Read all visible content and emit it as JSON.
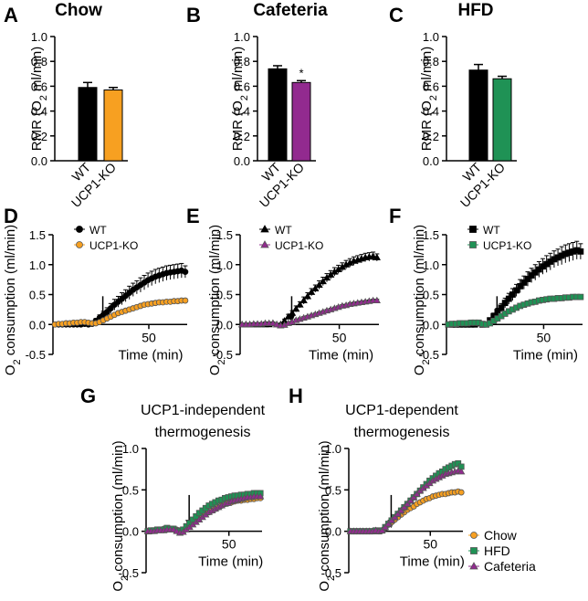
{
  "chart_data": [
    {
      "panel": "A",
      "type": "bar",
      "title": "Chow",
      "ylabel": "RMR (O2 ml/min)",
      "ylabel_main": "RMR (O",
      "ylabel_sub": "2",
      "ylabel_end": " ml/min)",
      "ylim": [
        0,
        1.0
      ],
      "yticks": [
        "0.0",
        "0.2",
        "0.4",
        "0.6",
        "0.8",
        "1.0"
      ],
      "categories": [
        "WT",
        "UCP1-KO"
      ],
      "values": [
        0.59,
        0.57
      ],
      "errors": [
        0.04,
        0.02
      ],
      "colors": [
        "#000000",
        "#f7a021"
      ],
      "significance": [
        "",
        ""
      ]
    },
    {
      "panel": "B",
      "type": "bar",
      "title": "Cafeteria",
      "ylabel": "RMR (O2 ml/min)",
      "ylabel_main": "RMR (O",
      "ylabel_sub": "2",
      "ylabel_end": " ml/min)",
      "ylim": [
        0,
        1.0
      ],
      "yticks": [
        "0.0",
        "0.2",
        "0.4",
        "0.6",
        "0.8",
        "1.0"
      ],
      "categories": [
        "WT",
        "UCP1-KO"
      ],
      "values": [
        0.74,
        0.63
      ],
      "errors": [
        0.025,
        0.015
      ],
      "colors": [
        "#000000",
        "#922a8f"
      ],
      "significance": [
        "",
        "*"
      ]
    },
    {
      "panel": "C",
      "type": "bar",
      "title": "HFD",
      "ylabel": "RMR (O2 ml/min)",
      "ylabel_main": "RMR (O",
      "ylabel_sub": "2",
      "ylabel_end": " ml/min)",
      "ylim": [
        0,
        1.0
      ],
      "yticks": [
        "0.0",
        "0.2",
        "0.4",
        "0.6",
        "0.8",
        "1.0"
      ],
      "categories": [
        "WT",
        "UCP1-KO"
      ],
      "values": [
        0.73,
        0.66
      ],
      "errors": [
        0.045,
        0.02
      ],
      "colors": [
        "#000000",
        "#1f9255"
      ],
      "significance": [
        "",
        ""
      ]
    },
    {
      "panel": "D",
      "type": "line",
      "ylabel": "O2 consumption (ml/min)",
      "ylabel_pre": "O",
      "ylabel_sub": "2",
      "ylabel_end": " consumption (ml/min)",
      "xlabel": "Time (min)",
      "xlim": [
        0,
        70
      ],
      "xticks": [
        50
      ],
      "xtick_labels": [
        "50"
      ],
      "ylim": [
        -0.5,
        1.5
      ],
      "yticks": [
        "-0.5",
        "0.0",
        "0.5",
        "1.0",
        "1.5"
      ],
      "arrow_x": 30,
      "series": [
        {
          "name": "WT",
          "marker": "circle",
          "color": "#000000",
          "values": [
            0.0,
            0.0,
            0.0,
            0.0,
            0.0,
            0.0,
            0.0,
            0.0,
            0.01,
            0.0,
            0.01,
            0.06,
            0.11,
            0.16,
            0.21,
            0.27,
            0.33,
            0.38,
            0.43,
            0.48,
            0.53,
            0.58,
            0.62,
            0.66,
            0.7,
            0.74,
            0.77,
            0.8,
            0.82,
            0.84,
            0.86,
            0.87,
            0.88,
            0.89,
            0.9,
            0.88
          ],
          "errors": [
            0.02,
            0.02,
            0.02,
            0.02,
            0.02,
            0.02,
            0.02,
            0.02,
            0.02,
            0.02,
            0.02,
            0.04,
            0.05,
            0.06,
            0.07,
            0.08,
            0.09,
            0.09,
            0.1,
            0.1,
            0.11,
            0.11,
            0.11,
            0.12,
            0.12,
            0.12,
            0.12,
            0.12,
            0.12,
            0.12,
            0.12,
            0.12,
            0.12,
            0.12,
            0.12,
            0.1
          ]
        },
        {
          "name": "UCP1-KO",
          "marker": "circle",
          "color": "#f7a021",
          "values": [
            0.0,
            0.01,
            0.01,
            0.02,
            0.02,
            0.03,
            0.03,
            0.04,
            0.04,
            0.03,
            0.02,
            0.02,
            0.04,
            0.07,
            0.1,
            0.13,
            0.16,
            0.19,
            0.21,
            0.23,
            0.25,
            0.27,
            0.29,
            0.31,
            0.33,
            0.34,
            0.35,
            0.36,
            0.37,
            0.37,
            0.38,
            0.38,
            0.39,
            0.39,
            0.4,
            0.4
          ],
          "errors": [
            0.02,
            0.02,
            0.02,
            0.02,
            0.02,
            0.02,
            0.02,
            0.02,
            0.02,
            0.02,
            0.02,
            0.02,
            0.02,
            0.03,
            0.03,
            0.03,
            0.03,
            0.03,
            0.03,
            0.03,
            0.03,
            0.03,
            0.03,
            0.03,
            0.03,
            0.03,
            0.03,
            0.03,
            0.03,
            0.03,
            0.03,
            0.03,
            0.03,
            0.03,
            0.03,
            0.03
          ]
        }
      ]
    },
    {
      "panel": "E",
      "type": "line",
      "ylabel": "O2 consumption (ml/min)",
      "ylabel_pre": "O",
      "ylabel_sub": "2",
      "ylabel_end": " consumption (ml/min)",
      "xlabel": "Time (min)",
      "xlim": [
        0,
        70
      ],
      "xticks": [
        50
      ],
      "xtick_labels": [
        "50"
      ],
      "ylim": [
        -0.5,
        1.5
      ],
      "yticks": [
        "-0.5",
        "0.0",
        "0.5",
        "1.0",
        "1.5"
      ],
      "arrow_x": 30,
      "series": [
        {
          "name": "WT",
          "marker": "triangle",
          "color": "#000000",
          "values": [
            0.0,
            0.0,
            0.0,
            0.0,
            0.0,
            0.0,
            0.0,
            0.0,
            0.02,
            0.0,
            0.0,
            0.06,
            0.13,
            0.19,
            0.26,
            0.33,
            0.4,
            0.47,
            0.54,
            0.6,
            0.66,
            0.72,
            0.78,
            0.83,
            0.88,
            0.92,
            0.96,
            1.0,
            1.03,
            1.06,
            1.08,
            1.1,
            1.12,
            1.13,
            1.14,
            1.12
          ],
          "errors": [
            0.02,
            0.02,
            0.02,
            0.02,
            0.02,
            0.02,
            0.02,
            0.02,
            0.02,
            0.02,
            0.02,
            0.03,
            0.04,
            0.04,
            0.05,
            0.05,
            0.06,
            0.06,
            0.06,
            0.06,
            0.07,
            0.07,
            0.07,
            0.07,
            0.07,
            0.07,
            0.07,
            0.07,
            0.07,
            0.07,
            0.07,
            0.07,
            0.07,
            0.07,
            0.07,
            0.06
          ]
        },
        {
          "name": "UCP1-KO",
          "marker": "triangle",
          "color": "#922a8f",
          "values": [
            0.0,
            0.0,
            0.0,
            0.01,
            0.01,
            0.01,
            0.02,
            0.02,
            0.02,
            0.0,
            -0.02,
            -0.01,
            0.02,
            0.04,
            0.07,
            0.09,
            0.11,
            0.13,
            0.15,
            0.17,
            0.19,
            0.21,
            0.23,
            0.25,
            0.27,
            0.29,
            0.31,
            0.32,
            0.34,
            0.35,
            0.36,
            0.37,
            0.38,
            0.39,
            0.4,
            0.4
          ],
          "errors": [
            0.02,
            0.02,
            0.02,
            0.02,
            0.02,
            0.02,
            0.02,
            0.02,
            0.02,
            0.02,
            0.02,
            0.02,
            0.02,
            0.02,
            0.02,
            0.02,
            0.02,
            0.02,
            0.02,
            0.02,
            0.02,
            0.02,
            0.02,
            0.02,
            0.02,
            0.02,
            0.02,
            0.02,
            0.02,
            0.02,
            0.02,
            0.02,
            0.02,
            0.02,
            0.02,
            0.02
          ]
        }
      ]
    },
    {
      "panel": "F",
      "type": "line",
      "ylabel": "O2 consumption (ml/min)",
      "ylabel_pre": "O",
      "ylabel_sub": "2",
      "ylabel_end": " consumption (ml/min)",
      "xlabel": "Time (min)",
      "xlim": [
        0,
        70
      ],
      "xticks": [
        50
      ],
      "xtick_labels": [
        "50"
      ],
      "ylim": [
        -0.5,
        1.5
      ],
      "yticks": [
        "-0.5",
        "0.0",
        "0.5",
        "1.0",
        "1.5"
      ],
      "arrow_x": 30,
      "series": [
        {
          "name": "WT",
          "marker": "square",
          "color": "#000000",
          "values": [
            0.0,
            0.0,
            0.0,
            0.0,
            0.0,
            0.0,
            0.0,
            0.0,
            0.02,
            0.0,
            0.0,
            0.07,
            0.14,
            0.21,
            0.28,
            0.36,
            0.43,
            0.5,
            0.57,
            0.64,
            0.7,
            0.76,
            0.82,
            0.87,
            0.92,
            0.97,
            1.01,
            1.05,
            1.09,
            1.12,
            1.15,
            1.18,
            1.2,
            1.22,
            1.24,
            1.22
          ],
          "errors": [
            0.02,
            0.02,
            0.02,
            0.02,
            0.02,
            0.02,
            0.02,
            0.02,
            0.02,
            0.02,
            0.02,
            0.04,
            0.05,
            0.06,
            0.07,
            0.08,
            0.09,
            0.1,
            0.1,
            0.11,
            0.11,
            0.12,
            0.12,
            0.13,
            0.13,
            0.13,
            0.14,
            0.14,
            0.14,
            0.14,
            0.15,
            0.15,
            0.15,
            0.15,
            0.15,
            0.13
          ]
        },
        {
          "name": "UCP1-KO",
          "marker": "square",
          "color": "#1f9255",
          "values": [
            0.0,
            0.01,
            0.01,
            0.02,
            0.02,
            0.02,
            0.03,
            0.03,
            0.03,
            0.01,
            0.0,
            0.02,
            0.06,
            0.1,
            0.14,
            0.18,
            0.22,
            0.25,
            0.28,
            0.31,
            0.33,
            0.35,
            0.37,
            0.38,
            0.4,
            0.41,
            0.42,
            0.43,
            0.43,
            0.44,
            0.44,
            0.45,
            0.45,
            0.46,
            0.46,
            0.46
          ],
          "errors": [
            0.02,
            0.02,
            0.02,
            0.02,
            0.02,
            0.02,
            0.02,
            0.02,
            0.02,
            0.02,
            0.02,
            0.02,
            0.03,
            0.03,
            0.03,
            0.03,
            0.03,
            0.03,
            0.03,
            0.03,
            0.03,
            0.03,
            0.03,
            0.03,
            0.03,
            0.03,
            0.03,
            0.03,
            0.03,
            0.03,
            0.03,
            0.03,
            0.03,
            0.03,
            0.03,
            0.03
          ]
        }
      ]
    },
    {
      "panel": "G",
      "type": "line",
      "title_line1": "UCP1-independent",
      "title_line2": "thermogenesis",
      "ylabel": "O2 consumption (ml/min)",
      "ylabel_pre": "O",
      "ylabel_sub": "2",
      "ylabel_end": " consumption (ml/min)",
      "xlabel": "Time (min)",
      "xlim": [
        0,
        70
      ],
      "xticks": [
        50
      ],
      "xtick_labels": [
        "50"
      ],
      "ylim": [
        -0.5,
        1.0
      ],
      "yticks": [
        "-0.5",
        "0.0",
        "0.5",
        "1.0"
      ],
      "arrow_x": 30,
      "series": [
        {
          "name": "Chow",
          "marker": "circle",
          "color": "#f7a021",
          "values": [
            0.0,
            0.0,
            0.01,
            0.02,
            0.02,
            0.03,
            0.03,
            0.03,
            0.03,
            0.02,
            0.01,
            0.02,
            0.04,
            0.07,
            0.1,
            0.13,
            0.16,
            0.19,
            0.21,
            0.23,
            0.25,
            0.27,
            0.29,
            0.31,
            0.33,
            0.34,
            0.35,
            0.36,
            0.37,
            0.37,
            0.38,
            0.38,
            0.39,
            0.39,
            0.4,
            0.4
          ]
        },
        {
          "name": "HFD",
          "marker": "square",
          "color": "#1f9255",
          "values": [
            0.0,
            0.01,
            0.01,
            0.02,
            0.02,
            0.02,
            0.04,
            0.03,
            0.03,
            0.01,
            0.0,
            0.02,
            0.06,
            0.1,
            0.14,
            0.18,
            0.22,
            0.25,
            0.28,
            0.31,
            0.33,
            0.35,
            0.37,
            0.38,
            0.4,
            0.41,
            0.42,
            0.43,
            0.43,
            0.44,
            0.44,
            0.45,
            0.45,
            0.46,
            0.46,
            0.46
          ]
        },
        {
          "name": "Cafeteria",
          "marker": "triangle",
          "color": "#922a8f",
          "values": [
            0.0,
            0.0,
            0.0,
            0.01,
            0.01,
            0.01,
            0.02,
            0.02,
            0.02,
            0.0,
            -0.02,
            -0.01,
            0.02,
            0.05,
            0.08,
            0.11,
            0.14,
            0.17,
            0.2,
            0.23,
            0.25,
            0.27,
            0.29,
            0.31,
            0.33,
            0.34,
            0.36,
            0.37,
            0.38,
            0.39,
            0.4,
            0.41,
            0.41,
            0.42,
            0.42,
            0.42
          ]
        }
      ]
    },
    {
      "panel": "H",
      "type": "line",
      "title_line1": "UCP1-dependent",
      "title_line2": "thermogenesis",
      "ylabel": "O2 consumption (ml/min)",
      "ylabel_pre": "O",
      "ylabel_sub": "2",
      "ylabel_end": " consumption (ml/min)",
      "xlabel": "Time (min)",
      "xlim": [
        0,
        70
      ],
      "xticks": [
        50
      ],
      "xtick_labels": [
        "50"
      ],
      "ylim": [
        -0.5,
        1.0
      ],
      "yticks": [
        "-0.5",
        "0.0",
        "0.5",
        "1.0"
      ],
      "arrow_x": 30,
      "legend": [
        "Chow",
        "HFD",
        "Cafeteria"
      ],
      "series": [
        {
          "name": "Chow",
          "marker": "circle",
          "color": "#f7a021",
          "values": [
            0.0,
            0.0,
            0.0,
            0.0,
            0.0,
            0.0,
            0.0,
            0.0,
            0.01,
            0.0,
            0.01,
            0.04,
            0.08,
            0.11,
            0.14,
            0.17,
            0.2,
            0.23,
            0.26,
            0.28,
            0.3,
            0.33,
            0.35,
            0.37,
            0.39,
            0.4,
            0.42,
            0.43,
            0.44,
            0.45,
            0.45,
            0.46,
            0.47,
            0.47,
            0.48,
            0.47
          ]
        },
        {
          "name": "HFD",
          "marker": "square",
          "color": "#1f9255",
          "values": [
            0.0,
            0.0,
            0.0,
            0.0,
            0.0,
            0.0,
            0.0,
            0.0,
            0.01,
            0.0,
            0.01,
            0.05,
            0.09,
            0.13,
            0.17,
            0.21,
            0.25,
            0.29,
            0.33,
            0.37,
            0.41,
            0.45,
            0.49,
            0.53,
            0.57,
            0.61,
            0.64,
            0.67,
            0.7,
            0.72,
            0.75,
            0.77,
            0.79,
            0.81,
            0.82,
            0.78
          ]
        },
        {
          "name": "Cafeteria",
          "marker": "triangle",
          "color": "#922a8f",
          "values": [
            0.0,
            0.0,
            0.0,
            0.0,
            0.0,
            0.0,
            0.0,
            0.0,
            0.01,
            0.0,
            0.01,
            0.05,
            0.09,
            0.13,
            0.17,
            0.21,
            0.25,
            0.29,
            0.33,
            0.37,
            0.41,
            0.45,
            0.49,
            0.52,
            0.55,
            0.58,
            0.61,
            0.63,
            0.65,
            0.67,
            0.69,
            0.7,
            0.71,
            0.72,
            0.73,
            0.72
          ]
        }
      ]
    }
  ]
}
